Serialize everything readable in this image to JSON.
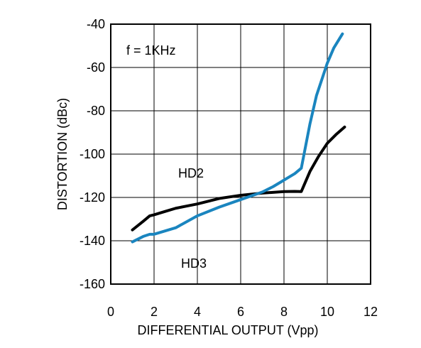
{
  "chart_data": {
    "type": "line",
    "xlabel": "DIFFERENTIAL OUTPUT (Vpp)",
    "ylabel": "DISTORTION (dBc)",
    "xlim": [
      0,
      12
    ],
    "ylim": [
      -160,
      -40
    ],
    "xticks": [
      0,
      2,
      4,
      6,
      8,
      10,
      12
    ],
    "yticks": [
      -40,
      -60,
      -80,
      -100,
      -120,
      -140,
      -160
    ],
    "grid": true,
    "annotations": [
      "f = 1KHz",
      "HD2",
      "HD3"
    ],
    "series": [
      {
        "name": "HD2",
        "color": "#000000",
        "x": [
          1.0,
          1.5,
          1.8,
          2.0,
          2.5,
          3.0,
          3.5,
          4.0,
          5.0,
          6.0,
          7.0,
          8.0,
          8.5,
          8.8,
          9.2,
          9.6,
          10.0,
          10.4,
          10.8
        ],
        "y": [
          -135,
          -131,
          -128.5,
          -128,
          -126.5,
          -125,
          -124,
          -123,
          -120.5,
          -119,
          -118,
          -117.3,
          -117.2,
          -117.3,
          -108,
          -101,
          -95,
          -91,
          -87.5
        ]
      },
      {
        "name": "HD3",
        "color": "#1a85bf",
        "x": [
          1.0,
          1.5,
          1.8,
          2.0,
          3.0,
          4.0,
          5.0,
          6.0,
          7.0,
          7.5,
          8.0,
          8.5,
          8.8,
          9.2,
          9.5,
          9.8,
          10.0,
          10.3,
          10.7
        ],
        "y": [
          -140.5,
          -138,
          -137,
          -137,
          -134,
          -128.5,
          -124.5,
          -121,
          -117.5,
          -115,
          -112,
          -109,
          -106.5,
          -86,
          -73,
          -64,
          -58,
          -51,
          -44.5
        ]
      }
    ]
  }
}
